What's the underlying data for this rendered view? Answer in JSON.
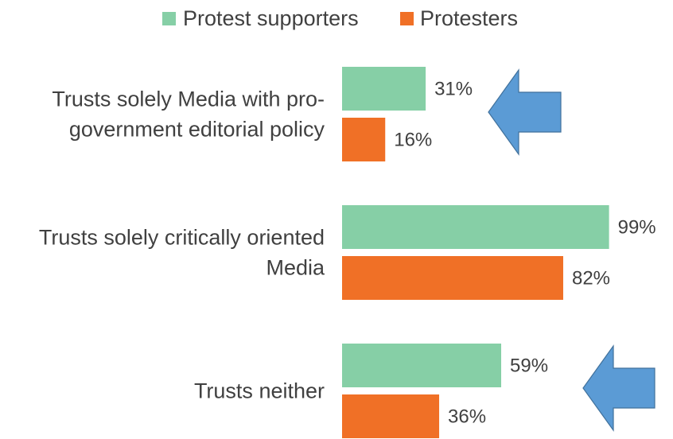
{
  "chart_data": {
    "type": "bar",
    "orientation": "horizontal",
    "categories": [
      [
        "Trusts solely Media with pro-",
        "government editorial policy"
      ],
      [
        "Trusts solely critically oriented",
        "Media"
      ],
      [
        "Trusts neither"
      ]
    ],
    "series": [
      {
        "name": "Protest supporters",
        "color": "#86CFA6",
        "values": [
          31,
          99,
          59
        ],
        "labels": [
          "31%",
          "99%",
          "59%"
        ]
      },
      {
        "name": "Protesters",
        "color": "#F07026",
        "values": [
          16,
          82,
          36
        ],
        "labels": [
          "16%",
          "82%",
          "36%"
        ]
      }
    ],
    "xlim": [
      0,
      100
    ],
    "legend": "top",
    "grid": false,
    "annotations": [
      {
        "type": "arrow",
        "direction": "left",
        "color": "#5B9BD5",
        "category_index": 0
      },
      {
        "type": "arrow",
        "direction": "left",
        "color": "#5B9BD5",
        "category_index": 2
      }
    ]
  }
}
